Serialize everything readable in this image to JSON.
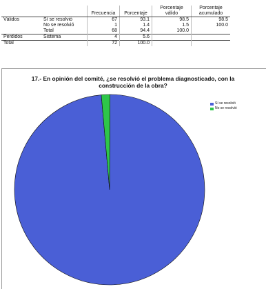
{
  "table": {
    "headers": [
      "",
      "",
      "Frecuencia",
      "Porcentaje",
      "Porcentaje\nválido",
      "Porcentaje\nacumulado"
    ],
    "rows": [
      {
        "group": "Válidos",
        "label": "Sí se resolvió",
        "frecuencia": "67",
        "porcentaje": "93.1",
        "valido": "98.5",
        "acumulado": "98.5"
      },
      {
        "group": "",
        "label": "No se resolvió",
        "frecuencia": "1",
        "porcentaje": "1.4",
        "valido": "1.5",
        "acumulado": "100.0"
      },
      {
        "group": "",
        "label": "Total",
        "frecuencia": "68",
        "porcentaje": "94.4",
        "valido": "100.0",
        "acumulado": ""
      },
      {
        "group": "Perdidos",
        "label": "Sistema",
        "frecuencia": "4",
        "porcentaje": "5.6",
        "valido": "",
        "acumulado": ""
      },
      {
        "group": "Total",
        "label": "",
        "frecuencia": "72",
        "porcentaje": "100.0",
        "valido": "",
        "acumulado": ""
      }
    ]
  },
  "chart_data": {
    "type": "pie",
    "title_line1": "17.- En opinión del comité, ¿se resolvió el problema diagnosticado, con la",
    "title_line2": "construcción de la obra?",
    "labels": [
      "Sí se resolvió",
      "No se resolvió"
    ],
    "values": [
      67,
      1
    ],
    "colors": [
      "#4a5fd6",
      "#2ec64a"
    ],
    "legend_position": "top-right"
  }
}
